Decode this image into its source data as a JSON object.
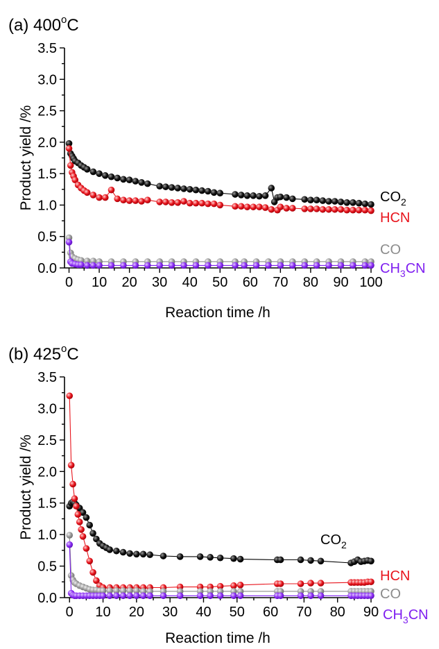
{
  "chart_data": [
    {
      "type": "scatter",
      "title": "(a) 400°C",
      "title_main": "(a) 400",
      "title_sup": "o",
      "title_unit": "C",
      "xlabel": "Reaction time  /h",
      "ylabel": "Product yield /%",
      "xlim": [
        -1.5,
        100
      ],
      "ylim": [
        0,
        3.5
      ],
      "xticks": [
        "0",
        "10",
        "20",
        "30",
        "40",
        "50",
        "60",
        "70",
        "80",
        "90",
        "100"
      ],
      "yticks": [
        "0.0",
        "0.5",
        "1.0",
        "1.5",
        "2.0",
        "2.5",
        "3.0",
        "3.5"
      ],
      "series": [
        {
          "name": "CO2",
          "label_main": "CO",
          "label_sub": "2",
          "color": "#000000",
          "x": [
            0,
            0.5,
            1,
            1.5,
            2,
            3,
            4,
            5,
            6,
            8,
            10,
            12,
            14,
            16,
            18,
            20,
            22,
            24,
            26,
            30,
            32,
            34,
            36,
            38,
            40,
            42,
            44,
            46,
            48,
            50,
            55,
            57,
            59,
            61,
            63,
            65,
            67,
            68,
            69,
            70,
            72,
            74,
            78,
            80,
            82,
            84,
            86,
            88,
            90,
            92,
            94,
            96,
            98,
            100
          ],
          "y": [
            1.98,
            1.82,
            1.78,
            1.74,
            1.7,
            1.67,
            1.63,
            1.6,
            1.57,
            1.53,
            1.5,
            1.47,
            1.45,
            1.43,
            1.41,
            1.4,
            1.38,
            1.36,
            1.34,
            1.3,
            1.29,
            1.28,
            1.27,
            1.26,
            1.25,
            1.24,
            1.23,
            1.22,
            1.2,
            1.19,
            1.17,
            1.16,
            1.15,
            1.15,
            1.14,
            1.15,
            1.27,
            1.05,
            1.12,
            1.13,
            1.12,
            1.1,
            1.09,
            1.08,
            1.08,
            1.07,
            1.06,
            1.06,
            1.05,
            1.04,
            1.04,
            1.03,
            1.02,
            1.01
          ]
        },
        {
          "name": "HCN",
          "label_main": "HCN",
          "label_sub": "",
          "color": "#e8141c",
          "x": [
            0,
            0.5,
            1,
            1.5,
            2,
            3,
            4,
            5,
            6,
            8,
            10,
            12,
            14,
            16,
            18,
            20,
            22,
            24,
            26,
            30,
            32,
            34,
            36,
            38,
            40,
            42,
            44,
            46,
            48,
            50,
            55,
            57,
            59,
            61,
            63,
            65,
            67,
            69,
            70,
            72,
            74,
            78,
            80,
            82,
            84,
            86,
            88,
            90,
            92,
            94,
            96,
            98,
            100
          ],
          "y": [
            1.9,
            1.63,
            1.52,
            1.46,
            1.4,
            1.32,
            1.27,
            1.23,
            1.2,
            1.16,
            1.12,
            1.12,
            1.24,
            1.1,
            1.08,
            1.07,
            1.07,
            1.06,
            1.08,
            1.05,
            1.05,
            1.04,
            1.04,
            1.06,
            1.03,
            1.03,
            1.03,
            1.02,
            1.02,
            1.0,
            0.98,
            0.98,
            0.97,
            0.97,
            0.97,
            0.96,
            0.93,
            0.92,
            0.97,
            0.95,
            0.95,
            0.94,
            0.94,
            0.94,
            0.93,
            0.93,
            0.93,
            0.93,
            0.92,
            0.92,
            0.92,
            0.92,
            0.91
          ]
        },
        {
          "name": "CO",
          "label_main": "CO",
          "label_sub": "",
          "color": "#8c8c8c",
          "x": [
            0,
            0.5,
            1,
            2,
            3,
            4,
            6,
            8,
            10,
            14,
            18,
            22,
            26,
            30,
            34,
            38,
            42,
            46,
            50,
            55,
            58,
            62,
            66,
            70,
            74,
            78,
            82,
            86,
            90,
            94,
            98,
            100
          ],
          "y": [
            0.48,
            0.24,
            0.18,
            0.15,
            0.13,
            0.12,
            0.11,
            0.11,
            0.1,
            0.1,
            0.1,
            0.1,
            0.1,
            0.1,
            0.1,
            0.1,
            0.1,
            0.1,
            0.1,
            0.1,
            0.1,
            0.1,
            0.1,
            0.1,
            0.1,
            0.1,
            0.1,
            0.1,
            0.1,
            0.1,
            0.1,
            0.1
          ]
        },
        {
          "name": "CH3CN",
          "label_main": "CH",
          "label_sub": "3",
          "label_tail": "CN",
          "color": "#7f1ff0",
          "x": [
            0,
            0.5,
            1,
            2,
            3,
            4,
            6,
            8,
            10,
            14,
            18,
            22,
            26,
            30,
            34,
            38,
            42,
            46,
            50,
            55,
            58,
            62,
            66,
            70,
            74,
            78,
            82,
            86,
            90,
            94,
            98,
            100
          ],
          "y": [
            0.41,
            0.1,
            0.07,
            0.06,
            0.05,
            0.05,
            0.04,
            0.04,
            0.04,
            0.04,
            0.04,
            0.04,
            0.04,
            0.04,
            0.04,
            0.04,
            0.04,
            0.04,
            0.04,
            0.04,
            0.04,
            0.04,
            0.04,
            0.04,
            0.04,
            0.04,
            0.04,
            0.04,
            0.04,
            0.04,
            0.04,
            0.04
          ]
        }
      ]
    },
    {
      "type": "scatter",
      "title": "(b) 425°C",
      "title_main": "(b) 425",
      "title_sup": "o",
      "title_unit": "C",
      "xlabel": "Reaction time  /h",
      "ylabel": "Product yield /%",
      "xlim": [
        -1.5,
        90
      ],
      "ylim": [
        0,
        3.5
      ],
      "xticks": [
        "0",
        "10",
        "20",
        "30",
        "40",
        "50",
        "60",
        "70",
        "80",
        "90"
      ],
      "yticks": [
        "0.0",
        "0.5",
        "1.0",
        "1.5",
        "2.0",
        "2.5",
        "3.0",
        "3.5"
      ],
      "series": [
        {
          "name": "CO2",
          "label_main": "CO",
          "label_sub": "2",
          "color": "#000000",
          "x": [
            0,
            0.5,
            1,
            1.5,
            2,
            3,
            4,
            5,
            6,
            7,
            8,
            9,
            10,
            11,
            12,
            14,
            16,
            18,
            20,
            22,
            24,
            28,
            33,
            39,
            42,
            45,
            49,
            51,
            62,
            63,
            69,
            72,
            75,
            84,
            85,
            86,
            87,
            88,
            89,
            90
          ],
          "y": [
            1.45,
            1.5,
            1.52,
            1.5,
            1.47,
            1.42,
            1.35,
            1.27,
            1.15,
            1.02,
            0.93,
            0.86,
            0.82,
            0.79,
            0.76,
            0.74,
            0.72,
            0.7,
            0.69,
            0.69,
            0.68,
            0.66,
            0.65,
            0.65,
            0.64,
            0.63,
            0.62,
            0.61,
            0.6,
            0.6,
            0.6,
            0.59,
            0.58,
            0.55,
            0.57,
            0.6,
            0.57,
            0.58,
            0.59,
            0.58
          ]
        },
        {
          "name": "HCN",
          "label_main": "HCN",
          "label_sub": "",
          "color": "#e8141c",
          "x": [
            0,
            0.5,
            1,
            1.5,
            2,
            2.5,
            3,
            3.5,
            4,
            5,
            6,
            7,
            8,
            9,
            10,
            12,
            14,
            16,
            18,
            20,
            22,
            24,
            28,
            33,
            39,
            42,
            45,
            49,
            51,
            62,
            63,
            69,
            72,
            75,
            84,
            85,
            86,
            87,
            88,
            89,
            90
          ],
          "y": [
            3.2,
            2.1,
            1.8,
            1.57,
            1.45,
            1.32,
            1.2,
            1.08,
            0.97,
            0.78,
            0.58,
            0.4,
            0.27,
            0.19,
            0.16,
            0.16,
            0.16,
            0.16,
            0.16,
            0.16,
            0.16,
            0.16,
            0.16,
            0.17,
            0.17,
            0.17,
            0.18,
            0.19,
            0.2,
            0.22,
            0.22,
            0.22,
            0.23,
            0.23,
            0.24,
            0.24,
            0.24,
            0.24,
            0.24,
            0.25,
            0.25
          ]
        },
        {
          "name": "CO",
          "label_main": "CO",
          "label_sub": "",
          "color": "#8c8c8c",
          "x": [
            0,
            0.5,
            1,
            1.5,
            2,
            3,
            4,
            5,
            6,
            7,
            8,
            9,
            10,
            12,
            14,
            16,
            18,
            20,
            22,
            24,
            28,
            33,
            39,
            42,
            45,
            49,
            51,
            62,
            63,
            69,
            72,
            75,
            84,
            85,
            86,
            87,
            88,
            89,
            90
          ],
          "y": [
            0.99,
            0.35,
            0.28,
            0.24,
            0.22,
            0.19,
            0.17,
            0.15,
            0.13,
            0.12,
            0.12,
            0.11,
            0.11,
            0.11,
            0.11,
            0.11,
            0.11,
            0.11,
            0.1,
            0.1,
            0.1,
            0.1,
            0.1,
            0.1,
            0.1,
            0.1,
            0.1,
            0.1,
            0.1,
            0.1,
            0.1,
            0.1,
            0.1,
            0.1,
            0.1,
            0.1,
            0.1,
            0.1,
            0.1
          ]
        },
        {
          "name": "CH3CN",
          "label_main": "CH",
          "label_sub": "3",
          "label_tail": "CN",
          "color": "#7f1ff0",
          "x": [
            0,
            0.5,
            1,
            1.5,
            2,
            3,
            4,
            5,
            6,
            7,
            8,
            9,
            10,
            12,
            14,
            16,
            18,
            20,
            22,
            24,
            28,
            33,
            39,
            42,
            45,
            49,
            51,
            62,
            63,
            69,
            72,
            75,
            84,
            85,
            86,
            87,
            88,
            89,
            90
          ],
          "y": [
            0.84,
            0.07,
            0.04,
            0.03,
            0.03,
            0.03,
            0.03,
            0.03,
            0.03,
            0.03,
            0.03,
            0.03,
            0.03,
            0.03,
            0.03,
            0.03,
            0.03,
            0.03,
            0.03,
            0.03,
            0.03,
            0.03,
            0.03,
            0.03,
            0.03,
            0.03,
            0.03,
            0.03,
            0.03,
            0.03,
            0.03,
            0.03,
            0.03,
            0.03,
            0.03,
            0.03,
            0.03,
            0.03,
            0.03
          ]
        }
      ]
    }
  ]
}
